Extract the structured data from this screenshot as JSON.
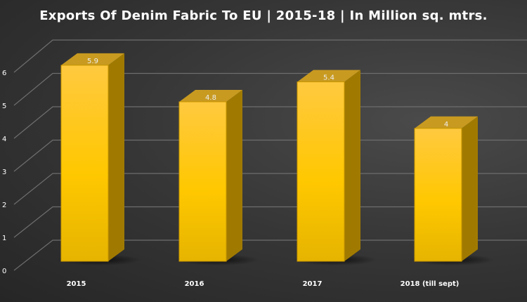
{
  "chart_data": {
    "type": "bar",
    "title": "Exports Of Denim Fabric To EU | 2015-18 | In Million sq. mtrs.",
    "categories": [
      "2015",
      "2016",
      "2017",
      "2018 (till sept)"
    ],
    "values": [
      5.9,
      4.8,
      5.4,
      4
    ],
    "data_labels": [
      "5.9",
      "4.8",
      "5.4",
      "4"
    ],
    "yticks": [
      "0",
      "1",
      "2",
      "3",
      "4",
      "5",
      "6"
    ],
    "ylim": [
      0,
      6
    ],
    "grid": true,
    "style": "3d-column",
    "colors": {
      "bar": "#ffc800",
      "bar_side": "#a07a00",
      "bar_top": "#c89a20",
      "background": "#333333",
      "grid": "#6e6e6e",
      "text": "#ffffff"
    }
  }
}
